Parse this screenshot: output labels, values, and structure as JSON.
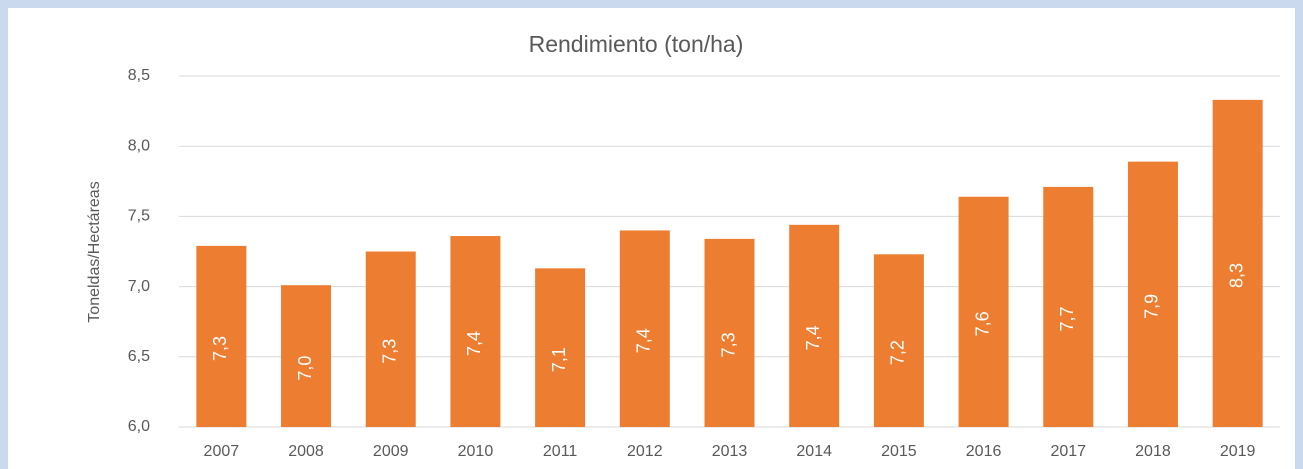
{
  "chart_data": {
    "type": "bar",
    "title": "Rendimiento (ton/ha)",
    "y_label": "Toneldas/Hectáreas",
    "categories": [
      "2007",
      "2008",
      "2009",
      "2010",
      "2011",
      "2012",
      "2013",
      "2014",
      "2015",
      "2016",
      "2017",
      "2018",
      "2019"
    ],
    "values": [
      7.29,
      7.01,
      7.25,
      7.36,
      7.13,
      7.4,
      7.34,
      7.44,
      7.23,
      7.64,
      7.71,
      7.89,
      8.33
    ],
    "value_labels": [
      "7,3",
      "7,0",
      "7,3",
      "7,4",
      "7,1",
      "7,4",
      "7,3",
      "7,4",
      "7,2",
      "7,6",
      "7,7",
      "7,9",
      "8,3"
    ],
    "color": "#ed7d31",
    "ylim": [
      6.0,
      8.5
    ],
    "yticks": [
      {
        "value": 6.0,
        "label": "6,0"
      },
      {
        "value": 6.5,
        "label": "6,5"
      },
      {
        "value": 7.0,
        "label": "7,0"
      },
      {
        "value": 7.5,
        "label": "7,5"
      },
      {
        "value": 8.0,
        "label": "8,0"
      },
      {
        "value": 8.5,
        "label": "8,5"
      }
    ],
    "grid": true
  }
}
